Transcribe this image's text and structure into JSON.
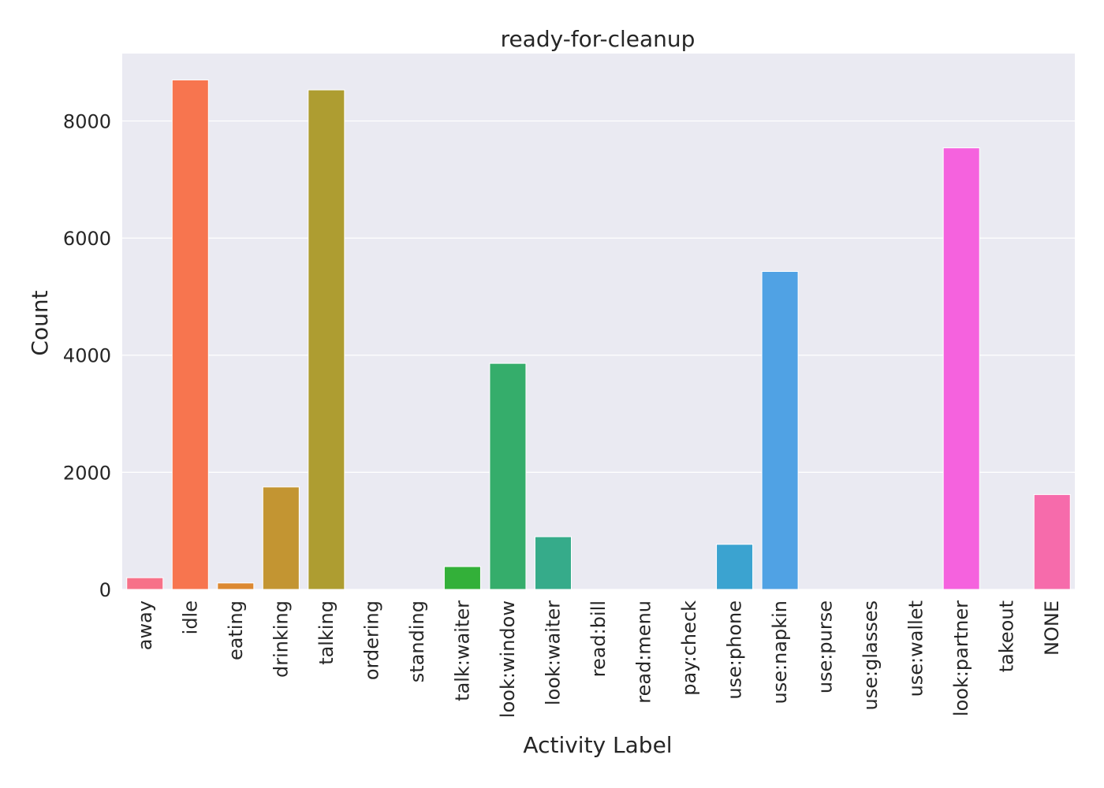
{
  "chart_data": {
    "type": "bar",
    "title": "ready-for-cleanup",
    "xlabel": "Activity Label",
    "ylabel": "Count",
    "ylim": [
      0,
      9150
    ],
    "yticks": [
      0,
      2000,
      4000,
      6000,
      8000
    ],
    "ytick_labels": [
      "0",
      "2000",
      "4000",
      "6000",
      "8000"
    ],
    "grid": true,
    "background": "#eaeaf2",
    "categories": [
      "away",
      "idle",
      "eating",
      "drinking",
      "talking",
      "ordering",
      "standing",
      "talk:waiter",
      "look:window",
      "look:waiter",
      "read:bill",
      "read:menu",
      "pay:check",
      "use:phone",
      "use:napkin",
      "use:purse",
      "use:glasses",
      "use:wallet",
      "look:partner",
      "takeout",
      "NONE"
    ],
    "values": [
      200,
      8700,
      110,
      1750,
      8530,
      0,
      0,
      390,
      3860,
      900,
      0,
      0,
      0,
      770,
      5430,
      0,
      0,
      0,
      7540,
      0,
      1620
    ],
    "colors": [
      "#f77189",
      "#f7754f",
      "#dc8932",
      "#c39532",
      "#ae9d31",
      "#97a431",
      "#77ab31",
      "#33b039",
      "#35ad6b",
      "#36ab8a",
      "#37aa9e",
      "#38a9af",
      "#3aa6bf",
      "#3ba3d0",
      "#50a2e4",
      "#8e99f3",
      "#bb83f4",
      "#e56ef3",
      "#f562de",
      "#f565c4",
      "#f66bab"
    ]
  }
}
